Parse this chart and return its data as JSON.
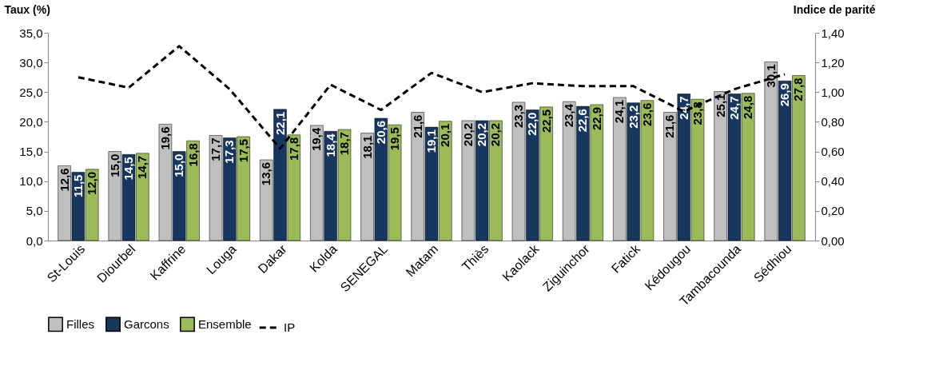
{
  "chart_data": {
    "type": "bar",
    "ylabel": "Taux (%)",
    "y2label": "Indice de parité",
    "categories": [
      "St-Louis",
      "Diourbel",
      "Kaffrine",
      "Louga",
      "Dakar",
      "Kolda",
      "SENEGAL",
      "Matam",
      "Thiès",
      "Kaolack",
      "Ziguinchor",
      "Fatick",
      "Kédougou",
      "Tambacounda",
      "Sédhiou"
    ],
    "series": [
      {
        "name": "Filles",
        "color": "#bfbfbf",
        "values": [
          12.6,
          15.0,
          19.6,
          17.7,
          13.6,
          19.4,
          18.1,
          21.6,
          20.2,
          23.3,
          23.4,
          24.1,
          21.6,
          25.1,
          30.1
        ],
        "value_labels": [
          "12,6",
          "15,0",
          "19,6",
          "17,7",
          "13,6",
          "19,4",
          "18,1",
          "21,6",
          "20,2",
          "23,3",
          "23,4",
          "24,1",
          "21,6",
          "25,1",
          "30,1"
        ]
      },
      {
        "name": "Garcons",
        "color": "#17375e",
        "values": [
          11.5,
          14.5,
          15.0,
          17.3,
          22.1,
          18.4,
          20.6,
          19.1,
          20.2,
          22.0,
          22.6,
          23.2,
          24.7,
          24.7,
          26.9
        ],
        "value_labels": [
          "11,5",
          "14,5",
          "15,0",
          "17,3",
          "22,1",
          "18,4",
          "20,6",
          "19,1",
          "20,2",
          "22,0",
          "22,6",
          "23,2",
          "24,7",
          "24,7",
          "26,9"
        ]
      },
      {
        "name": "Ensemble",
        "color": "#9bbb59",
        "values": [
          12.0,
          14.7,
          16.8,
          17.5,
          17.8,
          18.7,
          19.5,
          20.1,
          20.2,
          22.5,
          22.9,
          23.6,
          23.8,
          24.8,
          27.8
        ],
        "value_labels": [
          "12,0",
          "14,7",
          "16,8",
          "17,5",
          "17,8",
          "18,7",
          "19,5",
          "20,1",
          "20,2",
          "22,5",
          "22,9",
          "23,6",
          "23,8",
          "24,8",
          "27,8"
        ]
      },
      {
        "name": "IP",
        "type": "line",
        "axis": "y2",
        "color": "#000000",
        "line_style": "dashed",
        "marker": "none",
        "values": [
          1.1,
          1.03,
          1.31,
          1.02,
          0.62,
          1.05,
          0.88,
          1.13,
          1.0,
          1.06,
          1.04,
          1.04,
          0.87,
          1.02,
          1.12
        ]
      }
    ],
    "ylim": [
      0,
      35
    ],
    "yticks": [
      {
        "value": 0,
        "label": "0,0"
      },
      {
        "value": 5,
        "label": "5,0"
      },
      {
        "value": 10,
        "label": "10,0"
      },
      {
        "value": 15,
        "label": "15,0"
      },
      {
        "value": 20,
        "label": "20,0"
      },
      {
        "value": 25,
        "label": "25,0"
      },
      {
        "value": 30,
        "label": "30,0"
      },
      {
        "value": 35,
        "label": "35,0"
      }
    ],
    "y2lim": [
      0,
      1.4
    ],
    "y2ticks": [
      {
        "value": 0,
        "label": "0,00"
      },
      {
        "value": 0.2,
        "label": "0,20"
      },
      {
        "value": 0.4,
        "label": "0,40"
      },
      {
        "value": 0.6,
        "label": "0,60"
      },
      {
        "value": 0.8,
        "label": "0,80"
      },
      {
        "value": 1.0,
        "label": "1,00"
      },
      {
        "value": 1.2,
        "label": "1,20"
      },
      {
        "value": 1.4,
        "label": "1,40"
      }
    ],
    "grid": false,
    "legend": "bottom"
  }
}
